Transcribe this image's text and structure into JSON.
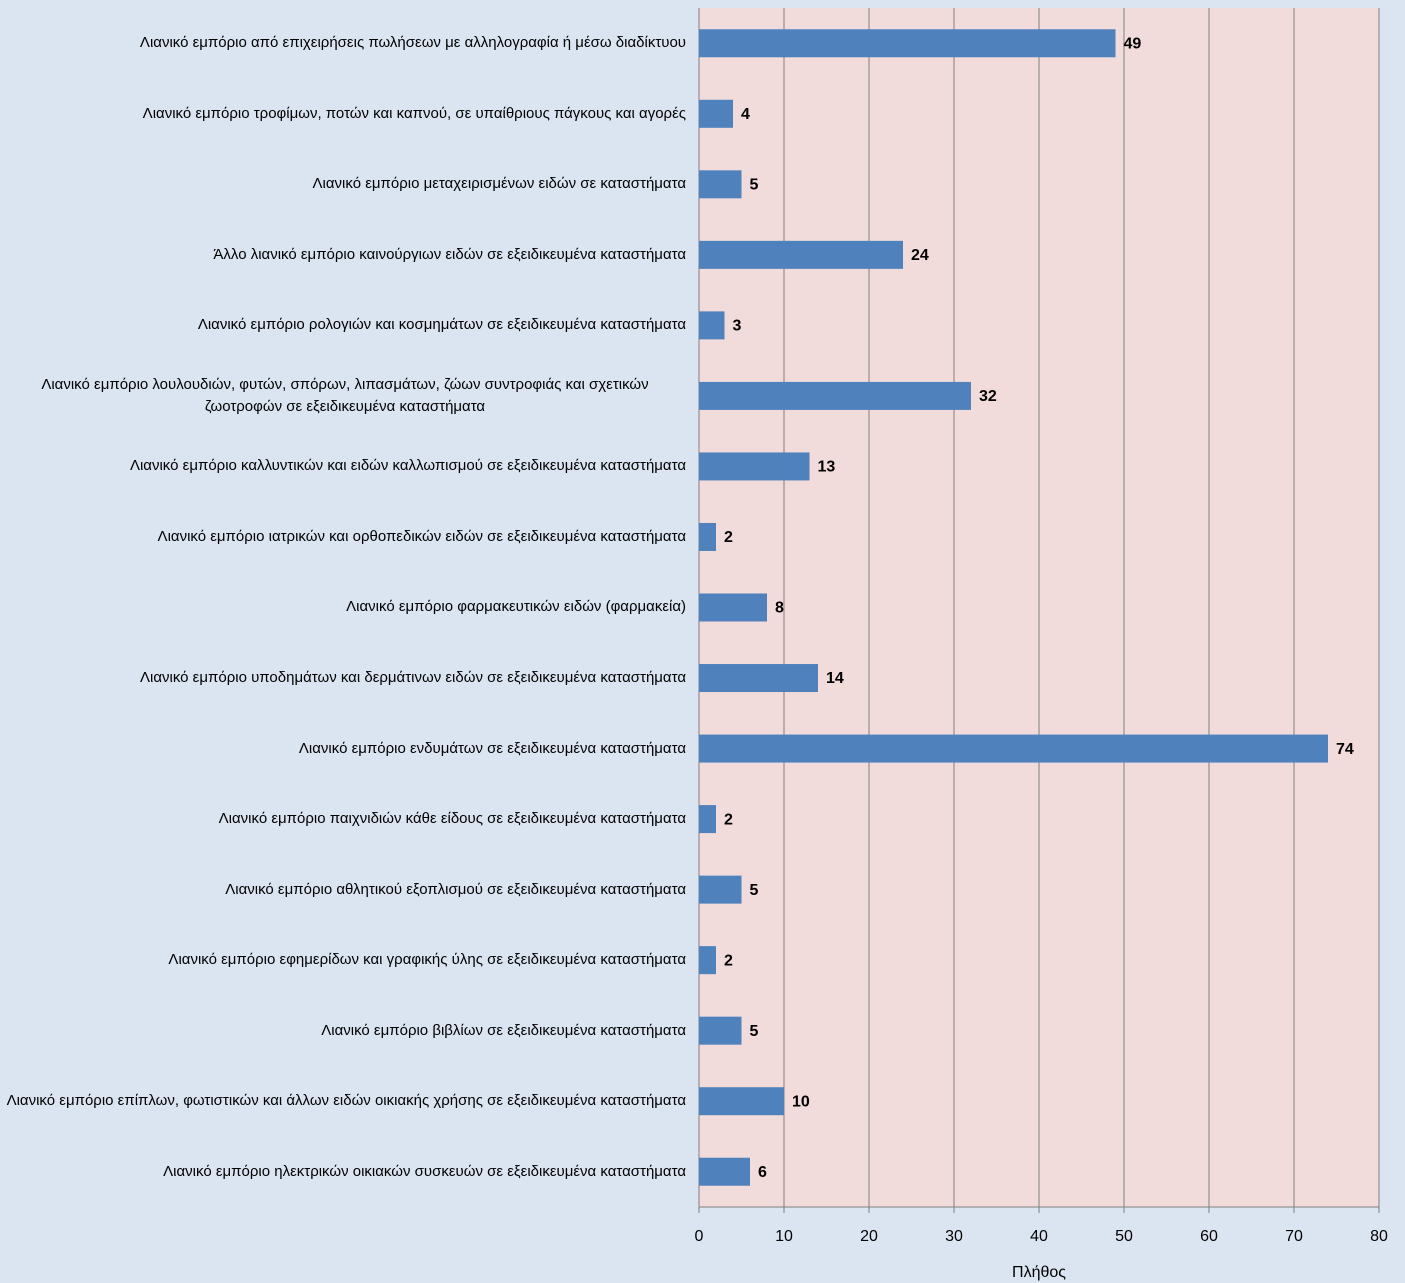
{
  "chart_data": {
    "type": "bar",
    "orientation": "horizontal",
    "categories": [
      "Λιανικό εμπόριο από επιχειρήσεις πωλήσεων με αλληλογραφία ή μέσω διαδίκτυου",
      "Λιανικό εμπόριο τροφίμων, ποτών και καπνού, σε υπαίθριους πάγκους και αγορές",
      "Λιανικό εμπόριο μεταχειρισμένων ειδών σε καταστήματα",
      "Άλλο λιανικό εμπόριο καινούργιων ειδών σε εξειδικευμένα καταστήματα",
      "Λιανικό εμπόριο ρολογιών και κοσμημάτων σε εξειδικευμένα καταστήματα",
      "Λιανικό εμπόριο λουλουδιών, φυτών, σπόρων, λιπασμάτων, ζώων συντροφιάς και σχετικών ζωοτροφών σε εξειδικευμένα καταστήματα",
      "Λιανικό εμπόριο καλλυντικών και ειδών καλλωπισμού σε εξειδικευμένα καταστήματα",
      "Λιανικό εμπόριο ιατρικών και ορθοπεδικών ειδών σε εξειδικευμένα καταστήματα",
      "Λιανικό εμπόριο φαρμακευτικών ειδών (φαρμακεία)",
      "Λιανικό εμπόριο υποδημάτων και δερμάτινων ειδών σε εξειδικευμένα καταστήματα",
      "Λιανικό εμπόριο ενδυμάτων σε εξειδικευμένα καταστήματα",
      "Λιανικό εμπόριο παιχνιδιών κάθε είδους σε εξειδικευμένα καταστήματα",
      "Λιανικό εμπόριο αθλητικού εξοπλισμού σε εξειδικευμένα καταστήματα",
      "Λιανικό εμπόριο εφημερίδων και γραφικής ύλης σε εξειδικευμένα καταστήματα",
      "Λιανικό εμπόριο βιβλίων σε εξειδικευμένα καταστήματα",
      "Λιανικό εμπόριο επίπλων, φωτιστικών και άλλων ειδών οικιακής χρήσης σε εξειδικευμένα καταστήματα",
      "Λιανικό εμπόριο ηλεκτρικών οικιακών συσκευών σε εξειδικευμένα καταστήματα"
    ],
    "values": [
      49,
      4,
      5,
      24,
      3,
      32,
      13,
      2,
      8,
      14,
      74,
      2,
      5,
      2,
      5,
      10,
      6
    ],
    "color": "#4f81bd",
    "xlabel": "Πλήθος",
    "xlim": [
      0,
      80
    ],
    "xticks": [
      0,
      10,
      20,
      30,
      40,
      50,
      60,
      70,
      80
    ],
    "grid": true
  }
}
